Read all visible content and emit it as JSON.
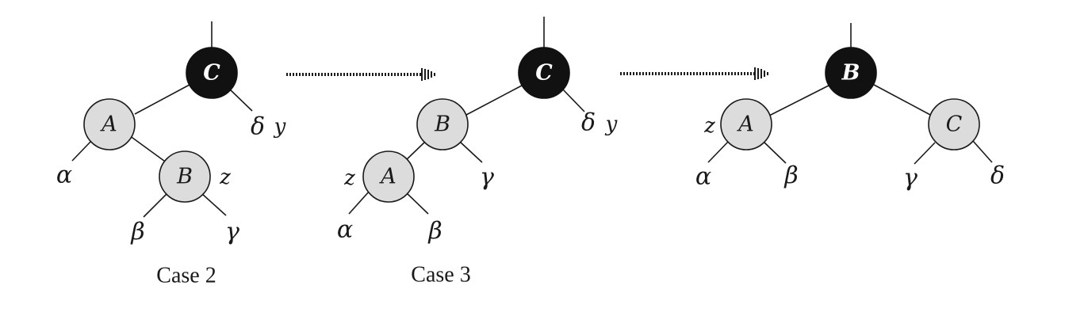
{
  "panels": [
    {
      "caption": "Case 2",
      "nodes": [
        {
          "key": "C",
          "color": "black"
        },
        {
          "key": "A",
          "color": "red"
        },
        {
          "key": "B",
          "color": "red"
        }
      ],
      "subtrees": [
        "α",
        "β",
        "γ",
        "δ"
      ],
      "pointers": [
        "y",
        "z"
      ]
    },
    {
      "caption": "Case 3",
      "nodes": [
        {
          "key": "C",
          "color": "black"
        },
        {
          "key": "B",
          "color": "red"
        },
        {
          "key": "A",
          "color": "red"
        }
      ],
      "subtrees": [
        "α",
        "β",
        "γ",
        "δ"
      ],
      "pointers": [
        "y",
        "z"
      ]
    },
    {
      "caption": "",
      "nodes": [
        {
          "key": "B",
          "color": "black"
        },
        {
          "key": "A",
          "color": "red"
        },
        {
          "key": "C",
          "color": "red"
        }
      ],
      "subtrees": [
        "α",
        "β",
        "γ",
        "δ"
      ],
      "pointers": [
        "z"
      ]
    }
  ],
  "colors": {
    "red_node_fill": "#dcdcdc",
    "black_node_fill": "#111111",
    "stroke": "#1a1a1a"
  }
}
